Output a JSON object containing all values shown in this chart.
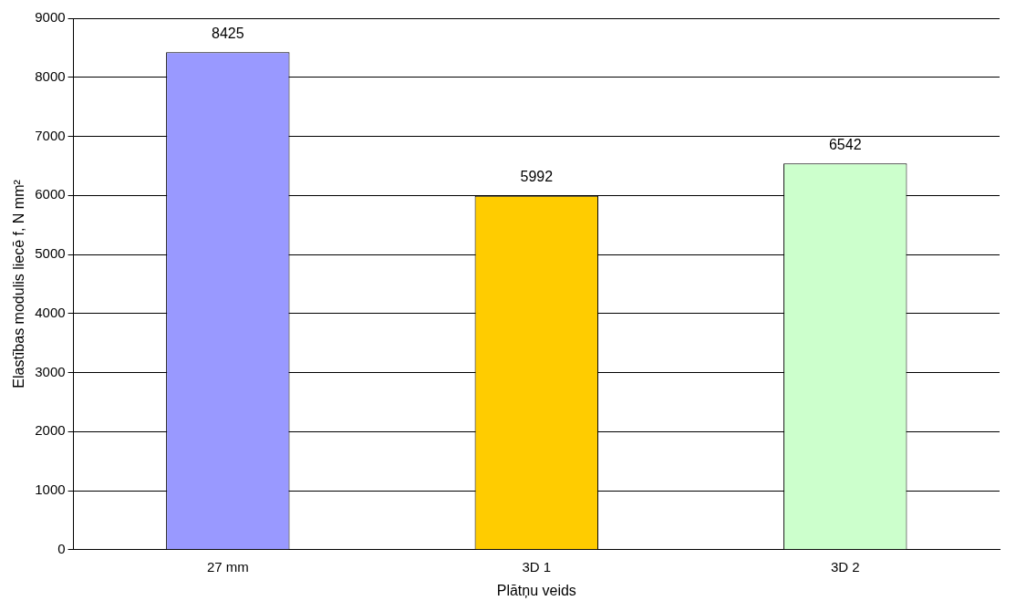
{
  "chart_data": {
    "type": "bar",
    "categories": [
      "27 mm",
      "3D 1",
      "3D 2"
    ],
    "colors": [
      "#9999ff",
      "#ffcc00",
      "#ccffcc"
    ],
    "values": [
      8425,
      5992,
      6542
    ],
    "xlabel": "Plātņu veids",
    "ylabel": "Elastības modulis liecē f, N mm²",
    "ylim": [
      0,
      9000
    ],
    "yticks": [
      0,
      1000,
      2000,
      3000,
      4000,
      5000,
      6000,
      7000,
      8000,
      9000
    ],
    "grid": "y",
    "data_labels": true,
    "legend": false
  }
}
